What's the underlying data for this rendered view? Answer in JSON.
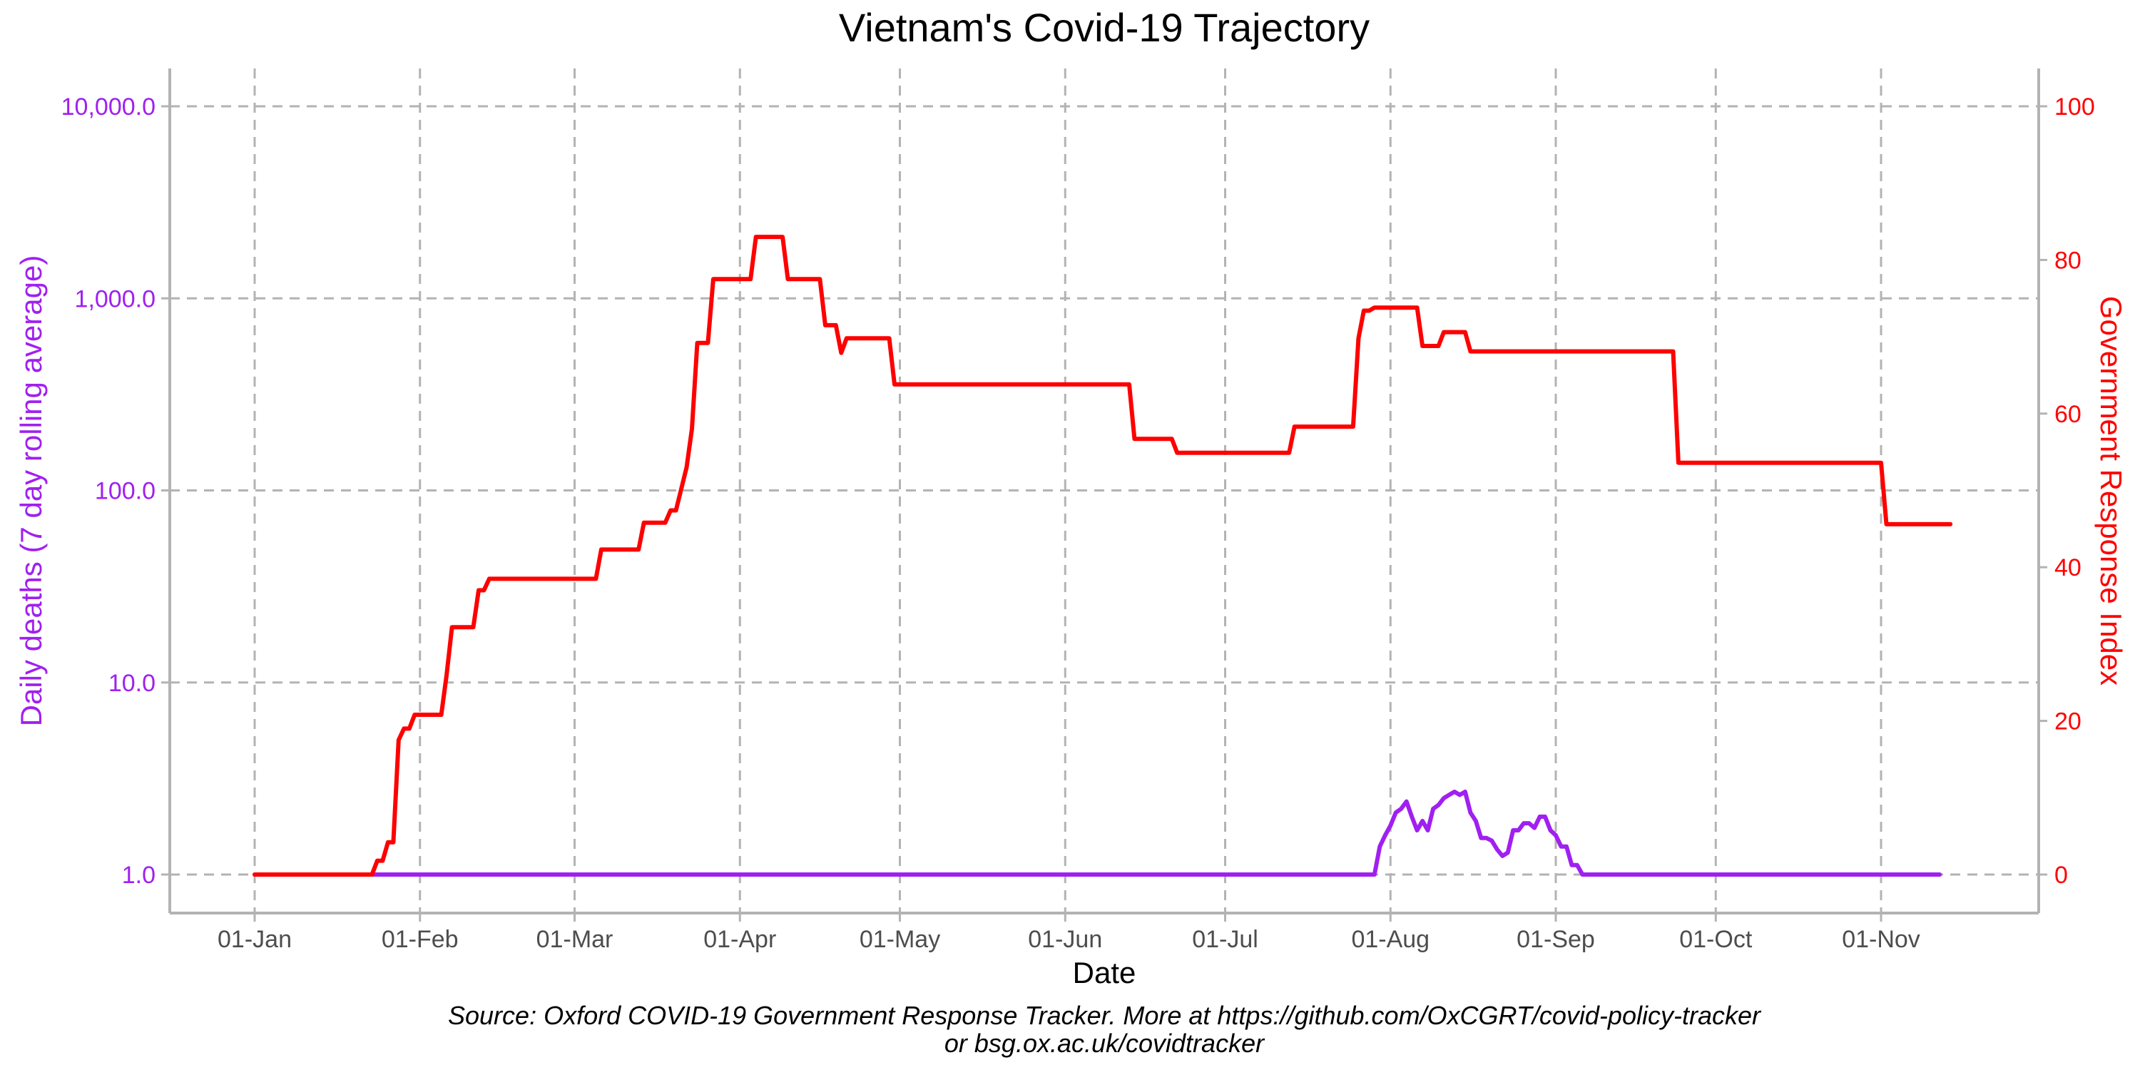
{
  "chart_data": {
    "type": "line",
    "title": "Vietnam's Covid-19 Trajectory",
    "xlabel": "Date",
    "ylabel_left": "Daily deaths (7 day rolling average)",
    "ylabel_right": "Government Response Index",
    "y_left_scale": "log10",
    "y_left_range": [
      1,
      10000
    ],
    "y_right_range": [
      0,
      100
    ],
    "x_range": [
      "2020-01-01",
      "2020-11-15"
    ],
    "grid": true,
    "legend": "none",
    "colors": {
      "deaths": "#a020f0",
      "response": "#ff0000"
    },
    "x_ticks": [
      {
        "date": "2020-01-01",
        "label": "01-Jan"
      },
      {
        "date": "2020-02-01",
        "label": "01-Feb"
      },
      {
        "date": "2020-03-01",
        "label": "01-Mar"
      },
      {
        "date": "2020-04-01",
        "label": "01-Apr"
      },
      {
        "date": "2020-05-01",
        "label": "01-May"
      },
      {
        "date": "2020-06-01",
        "label": "01-Jun"
      },
      {
        "date": "2020-07-01",
        "label": "01-Jul"
      },
      {
        "date": "2020-08-01",
        "label": "01-Aug"
      },
      {
        "date": "2020-09-01",
        "label": "01-Sep"
      },
      {
        "date": "2020-10-01",
        "label": "01-Oct"
      },
      {
        "date": "2020-11-01",
        "label": "01-Nov"
      }
    ],
    "y_left_ticks": [
      {
        "value": 1,
        "label": "1.0"
      },
      {
        "value": 10,
        "label": "10.0"
      },
      {
        "value": 100,
        "label": "100.0"
      },
      {
        "value": 1000,
        "label": "1,000.0"
      },
      {
        "value": 10000,
        "label": "10,000.0"
      }
    ],
    "y_right_ticks": [
      {
        "value": 0,
        "label": "0"
      },
      {
        "value": 20,
        "label": "20"
      },
      {
        "value": 40,
        "label": "40"
      },
      {
        "value": 60,
        "label": "60"
      },
      {
        "value": 80,
        "label": "80"
      },
      {
        "value": 100,
        "label": "100"
      }
    ],
    "series": [
      {
        "name": "Daily deaths (7 day rolling average)",
        "axis": "left",
        "points": [
          [
            "2020-01-01",
            1.0
          ],
          [
            "2020-07-29",
            1.0
          ],
          [
            "2020-07-30",
            1.4
          ],
          [
            "2020-07-31",
            1.6
          ],
          [
            "2020-08-01",
            1.8
          ],
          [
            "2020-08-02",
            2.1
          ],
          [
            "2020-08-03",
            2.2
          ],
          [
            "2020-08-04",
            2.4
          ],
          [
            "2020-08-05",
            2.0
          ],
          [
            "2020-08-06",
            1.7
          ],
          [
            "2020-08-07",
            1.9
          ],
          [
            "2020-08-08",
            1.7
          ],
          [
            "2020-08-09",
            2.2
          ],
          [
            "2020-08-10",
            2.3
          ],
          [
            "2020-08-11",
            2.5
          ],
          [
            "2020-08-12",
            2.6
          ],
          [
            "2020-08-13",
            2.7
          ],
          [
            "2020-08-14",
            2.6
          ],
          [
            "2020-08-15",
            2.7
          ],
          [
            "2020-08-16",
            2.1
          ],
          [
            "2020-08-17",
            1.9
          ],
          [
            "2020-08-18",
            1.55
          ],
          [
            "2020-08-19",
            1.55
          ],
          [
            "2020-08-20",
            1.5
          ],
          [
            "2020-08-21",
            1.35
          ],
          [
            "2020-08-22",
            1.25
          ],
          [
            "2020-08-23",
            1.3
          ],
          [
            "2020-08-24",
            1.7
          ],
          [
            "2020-08-25",
            1.7
          ],
          [
            "2020-08-26",
            1.85
          ],
          [
            "2020-08-27",
            1.85
          ],
          [
            "2020-08-28",
            1.75
          ],
          [
            "2020-08-29",
            2.0
          ],
          [
            "2020-08-30",
            2.0
          ],
          [
            "2020-08-31",
            1.7
          ],
          [
            "2020-09-01",
            1.6
          ],
          [
            "2020-09-02",
            1.4
          ],
          [
            "2020-09-03",
            1.4
          ],
          [
            "2020-09-04",
            1.12
          ],
          [
            "2020-09-05",
            1.12
          ],
          [
            "2020-09-06",
            1.0
          ],
          [
            "2020-11-12",
            1.0
          ]
        ]
      },
      {
        "name": "Government Response Index",
        "axis": "right",
        "points": [
          [
            "2020-01-01",
            0
          ],
          [
            "2020-01-23",
            0
          ],
          [
            "2020-01-24",
            1.8
          ],
          [
            "2020-01-25",
            1.8
          ],
          [
            "2020-01-26",
            4.2
          ],
          [
            "2020-01-27",
            4.2
          ],
          [
            "2020-01-28",
            17.5
          ],
          [
            "2020-01-29",
            19
          ],
          [
            "2020-01-30",
            19
          ],
          [
            "2020-01-31",
            20.8
          ],
          [
            "2020-02-05",
            20.8
          ],
          [
            "2020-02-06",
            26
          ],
          [
            "2020-02-07",
            32.2
          ],
          [
            "2020-02-11",
            32.2
          ],
          [
            "2020-02-12",
            37
          ],
          [
            "2020-02-13",
            37
          ],
          [
            "2020-02-14",
            38.5
          ],
          [
            "2020-02-29",
            38.5
          ],
          [
            "2020-03-01",
            38.5
          ],
          [
            "2020-03-05",
            38.5
          ],
          [
            "2020-03-06",
            42.3
          ],
          [
            "2020-03-13",
            42.3
          ],
          [
            "2020-03-14",
            45.8
          ],
          [
            "2020-03-18",
            45.8
          ],
          [
            "2020-03-19",
            47.4
          ],
          [
            "2020-03-20",
            47.4
          ],
          [
            "2020-03-22",
            53
          ],
          [
            "2020-03-23",
            58
          ],
          [
            "2020-03-24",
            69.2
          ],
          [
            "2020-03-26",
            69.2
          ],
          [
            "2020-03-27",
            77.5
          ],
          [
            "2020-04-03",
            77.5
          ],
          [
            "2020-04-04",
            83
          ],
          [
            "2020-04-09",
            83
          ],
          [
            "2020-04-10",
            77.5
          ],
          [
            "2020-04-16",
            77.5
          ],
          [
            "2020-04-17",
            71.5
          ],
          [
            "2020-04-19",
            71.5
          ],
          [
            "2020-04-20",
            67.9
          ],
          [
            "2020-04-21",
            69.8
          ],
          [
            "2020-04-29",
            69.8
          ],
          [
            "2020-04-30",
            63.8
          ],
          [
            "2020-06-13",
            63.8
          ],
          [
            "2020-06-14",
            56.7
          ],
          [
            "2020-06-21",
            56.7
          ],
          [
            "2020-06-22",
            54.9
          ],
          [
            "2020-07-13",
            54.9
          ],
          [
            "2020-07-14",
            58.3
          ],
          [
            "2020-07-25",
            58.3
          ],
          [
            "2020-07-26",
            69.8
          ],
          [
            "2020-07-27",
            73.4
          ],
          [
            "2020-07-28",
            73.4
          ],
          [
            "2020-07-29",
            73.8
          ],
          [
            "2020-08-06",
            73.8
          ],
          [
            "2020-08-07",
            68.8
          ],
          [
            "2020-08-10",
            68.8
          ],
          [
            "2020-08-11",
            70.6
          ],
          [
            "2020-08-15",
            70.6
          ],
          [
            "2020-08-16",
            68.1
          ],
          [
            "2020-09-23",
            68.1
          ],
          [
            "2020-09-24",
            53.6
          ],
          [
            "2020-11-01",
            53.6
          ],
          [
            "2020-11-02",
            45.6
          ],
          [
            "2020-11-14",
            45.6
          ]
        ]
      }
    ]
  },
  "caption": {
    "line1": "Source: Oxford COVID-19 Government Response Tracker. More at https://github.com/OxCGRT/covid-policy-tracker",
    "line2": "or bsg.ox.ac.uk/covidtracker"
  }
}
